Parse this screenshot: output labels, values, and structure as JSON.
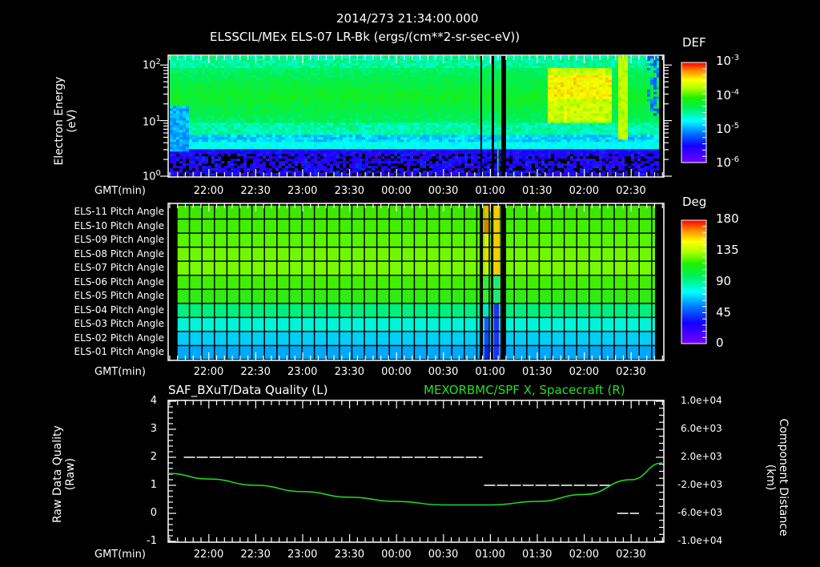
{
  "header": {
    "timestamp": "2014/273 21:34:00.000",
    "subtitle": "ELSSCIL/MEx ELS-07 LR-Bk  (ergs/(cm**2-sr-sec-eV))"
  },
  "time_axis": {
    "label": "GMT(min)",
    "ticks": [
      "22:00",
      "22:30",
      "23:00",
      "23:30",
      "00:00",
      "00:30",
      "01:00",
      "01:30",
      "02:00",
      "02:30"
    ]
  },
  "panel1": {
    "ylabel_line1": "Electron Energy",
    "ylabel_line2": "(eV)",
    "yticks": [
      {
        "base": "10",
        "exp": "2"
      },
      {
        "base": "10",
        "exp": "1"
      },
      {
        "base": "10",
        "exp": "0"
      }
    ],
    "colorbar_title": "DEF",
    "colorbar_ticks": [
      {
        "base": "10",
        "exp": "-3"
      },
      {
        "base": "10",
        "exp": "-4"
      },
      {
        "base": "10",
        "exp": "-5"
      },
      {
        "base": "10",
        "exp": "-6"
      }
    ]
  },
  "panel2": {
    "rows": [
      "ELS-11 Pitch Angle",
      "ELS-10 Pitch Angle",
      "ELS-09 Pitch Angle",
      "ELS-08 Pitch Angle",
      "ELS-07 Pitch Angle",
      "ELS-06 Pitch Angle",
      "ELS-05 Pitch Angle",
      "ELS-04 Pitch Angle",
      "ELS-03 Pitch Angle",
      "ELS-02 Pitch Angle",
      "ELS-01 Pitch Angle"
    ],
    "row_colors": [
      "#3ee800",
      "#40f000",
      "#58f400",
      "#70f800",
      "#78fa00",
      "#40f000",
      "#30ec10",
      "#00f080",
      "#00f4d8",
      "#00d0f4",
      "#00a8f8"
    ],
    "colorbar_title": "Deg",
    "colorbar_ticks": [
      "180",
      "135",
      "90",
      "45",
      "0"
    ]
  },
  "panel3": {
    "left_title": "SAF_BXuT/Data Quality (L)",
    "right_title": "MEXORBMC/SPF X, Spacecraft (R)",
    "right_title_color": "#22e022",
    "ylabel_left_line1": "Raw Data Quality",
    "ylabel_left_line2": "(Raw)",
    "ylabel_right_line1": "Component Distance",
    "ylabel_right_line2": "(km)",
    "yticks_left": [
      "4",
      "3",
      "2",
      "1",
      "0",
      "-1"
    ],
    "yticks_right": [
      "1.0e+04",
      "6.0e+03",
      "2.0e+03",
      "-2.0e+03",
      "-6.0e+03",
      "-1.0e+04"
    ]
  },
  "chart_data": [
    {
      "type": "heatmap",
      "title": "ELSSCIL/MEx ELS-07 LR-Bk (ergs/(cm**2-sr-sec-eV))",
      "xlabel": "GMT(min)",
      "ylabel": "Electron Energy (eV)",
      "x_ticks": [
        "22:00",
        "22:30",
        "23:00",
        "23:30",
        "00:00",
        "00:30",
        "01:00",
        "01:30",
        "02:00",
        "02:30"
      ],
      "y_scale": "log",
      "ylim": [
        1,
        150
      ],
      "colorbar": {
        "label": "DEF",
        "scale": "log",
        "range": [
          1e-06,
          0.001
        ]
      },
      "notes": "Peak flux ~1e-4 to 3e-4 between ~01:35 and ~02:15 at 30-100 eV; data gaps near 00:55-01:10"
    },
    {
      "type": "heatmap",
      "title": "Pitch Angle",
      "xlabel": "GMT(min)",
      "categories": [
        "ELS-11",
        "ELS-10",
        "ELS-09",
        "ELS-08",
        "ELS-07",
        "ELS-06",
        "ELS-05",
        "ELS-04",
        "ELS-03",
        "ELS-02",
        "ELS-01"
      ],
      "approx_values_deg": [
        95,
        98,
        103,
        108,
        110,
        97,
        90,
        75,
        60,
        50,
        40
      ],
      "colorbar": {
        "label": "Deg",
        "range": [
          0,
          180
        ]
      }
    },
    {
      "type": "line",
      "title": "SAF_BXuT/Data Quality (L) & MEXORBMC/SPF X, Spacecraft (R)",
      "xlabel": "GMT(min)",
      "ylabel": "Raw Data Quality (Raw)",
      "ylabel_right": "Component Distance (km)",
      "ylim": [
        -1,
        4
      ],
      "ylim_right": [
        -10000,
        10000
      ],
      "series": [
        {
          "name": "Data Quality",
          "axis": "left",
          "x": [
            "21:44",
            "00:55",
            "00:56",
            "02:17",
            "02:18",
            "02:35"
          ],
          "values": [
            2,
            2,
            1,
            1,
            0,
            0
          ]
        },
        {
          "name": "SPF X",
          "axis": "right",
          "x": [
            "21:34",
            "22:00",
            "22:30",
            "23:00",
            "23:30",
            "00:00",
            "00:30",
            "01:00",
            "01:30",
            "02:00",
            "02:30",
            "02:50"
          ],
          "values": [
            -300,
            -1100,
            -2000,
            -2900,
            -3700,
            -4300,
            -4800,
            -4800,
            -4300,
            -3300,
            -1200,
            1200
          ]
        }
      ]
    }
  ]
}
